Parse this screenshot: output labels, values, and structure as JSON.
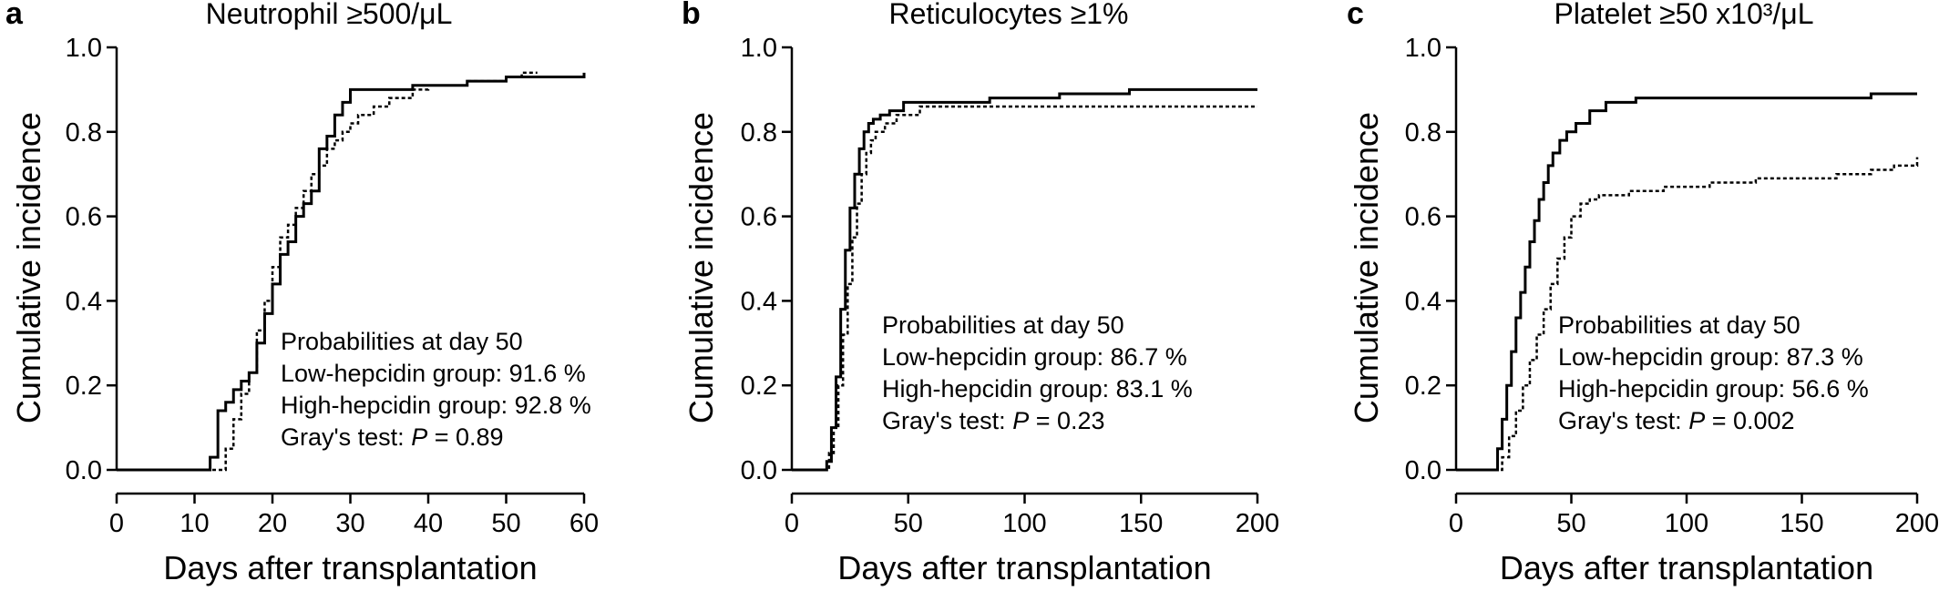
{
  "chart_data": [
    {
      "type": "line",
      "panel_letter": "a",
      "title": "Neutrophil ≥500/μL",
      "xlabel": "Days after transplantation",
      "ylabel": "Cumulative incidence",
      "xlim": [
        0,
        60
      ],
      "ylim": [
        0,
        1.0
      ],
      "xticks": [
        "0",
        "10",
        "20",
        "30",
        "40",
        "50",
        "60"
      ],
      "yticks": [
        "0.0",
        "0.2",
        "0.4",
        "0.6",
        "0.8",
        "1.0"
      ],
      "grid": false,
      "legend": "none",
      "annotation": {
        "heading": "Probabilities at day 50",
        "line1": "Low-hepcidin group: 91.6 %",
        "line2": "High-hepcidin group: 92.8 %",
        "test_prefix": "Gray's test: ",
        "test_stat": "P",
        "test_value": " = 0.89"
      },
      "series": [
        {
          "style": "solid",
          "x": [
            0,
            12,
            13,
            14,
            15,
            16,
            17,
            18,
            19,
            20,
            21,
            22,
            23,
            24,
            25,
            26,
            27,
            28,
            29,
            30,
            31,
            35,
            38,
            41,
            45,
            48,
            50,
            60
          ],
          "y": [
            0,
            0.03,
            0.14,
            0.16,
            0.19,
            0.21,
            0.23,
            0.3,
            0.37,
            0.44,
            0.51,
            0.54,
            0.6,
            0.63,
            0.66,
            0.76,
            0.79,
            0.84,
            0.87,
            0.9,
            0.9,
            0.9,
            0.91,
            0.91,
            0.92,
            0.92,
            0.93,
            0.94
          ]
        },
        {
          "style": "dashed",
          "x": [
            0,
            14,
            15,
            16,
            17,
            18,
            19,
            20,
            21,
            22,
            23,
            24,
            25,
            26,
            27,
            28,
            29,
            30,
            31,
            33,
            35,
            38,
            40,
            45,
            50,
            52,
            54
          ],
          "y": [
            0,
            0.05,
            0.12,
            0.18,
            0.23,
            0.33,
            0.4,
            0.48,
            0.55,
            0.58,
            0.62,
            0.66,
            0.7,
            0.72,
            0.76,
            0.78,
            0.8,
            0.82,
            0.84,
            0.86,
            0.88,
            0.9,
            0.91,
            0.92,
            0.93,
            0.94,
            0.94
          ]
        }
      ]
    },
    {
      "type": "line",
      "panel_letter": "b",
      "title": "Reticulocytes ≥1%",
      "xlabel": "Days after transplantation",
      "ylabel": "Cumulative incidence",
      "xlim": [
        0,
        200
      ],
      "ylim": [
        0,
        1.0
      ],
      "xticks": [
        "0",
        "50",
        "100",
        "150",
        "200"
      ],
      "yticks": [
        "0.0",
        "0.2",
        "0.4",
        "0.6",
        "0.8",
        "1.0"
      ],
      "grid": false,
      "legend": "none",
      "annotation": {
        "heading": "Probabilities at day 50",
        "line1": "Low-hepcidin group: 86.7 %",
        "line2": "High-hepcidin group: 83.1 %",
        "test_prefix": "Gray's test: ",
        "test_stat": "P",
        "test_value": " = 0.23"
      },
      "series": [
        {
          "style": "solid",
          "x": [
            0,
            15,
            17,
            19,
            21,
            23,
            25,
            27,
            29,
            31,
            33,
            35,
            38,
            42,
            48,
            60,
            85,
            115,
            145,
            200
          ],
          "y": [
            0,
            0.02,
            0.1,
            0.22,
            0.38,
            0.52,
            0.62,
            0.7,
            0.76,
            0.8,
            0.82,
            0.83,
            0.84,
            0.85,
            0.87,
            0.87,
            0.88,
            0.89,
            0.9,
            0.9
          ]
        },
        {
          "style": "dashed",
          "x": [
            0,
            16,
            18,
            20,
            22,
            24,
            26,
            28,
            30,
            32,
            34,
            36,
            40,
            45,
            55,
            200
          ],
          "y": [
            0,
            0.04,
            0.1,
            0.2,
            0.32,
            0.44,
            0.55,
            0.63,
            0.7,
            0.75,
            0.78,
            0.8,
            0.82,
            0.84,
            0.86,
            0.86
          ]
        }
      ]
    },
    {
      "type": "line",
      "panel_letter": "c",
      "title": "Platelet ≥50 x10³/μL",
      "xlabel": "Days after transplantation",
      "ylabel": "Cumulative incidence",
      "xlim": [
        0,
        200
      ],
      "ylim": [
        0,
        1.0
      ],
      "xticks": [
        "0",
        "50",
        "100",
        "150",
        "200"
      ],
      "yticks": [
        "0.0",
        "0.2",
        "0.4",
        "0.6",
        "0.8",
        "1.0"
      ],
      "grid": false,
      "legend": "none",
      "annotation": {
        "heading": "Probabilities at day 50",
        "line1": "Low-hepcidin group: 87.3 %",
        "line2": "High-hepcidin group: 56.6 %",
        "test_prefix": "Gray's test: ",
        "test_stat": "P",
        "test_value": " = 0.002"
      },
      "series": [
        {
          "style": "solid",
          "x": [
            0,
            18,
            20,
            22,
            24,
            26,
            28,
            30,
            32,
            34,
            36,
            38,
            40,
            42,
            45,
            48,
            52,
            58,
            65,
            78,
            180,
            200
          ],
          "y": [
            0,
            0.05,
            0.12,
            0.2,
            0.28,
            0.36,
            0.42,
            0.48,
            0.54,
            0.59,
            0.64,
            0.68,
            0.72,
            0.75,
            0.78,
            0.8,
            0.82,
            0.85,
            0.87,
            0.88,
            0.89,
            0.89
          ]
        },
        {
          "style": "dashed",
          "x": [
            0,
            20,
            23,
            26,
            29,
            32,
            35,
            38,
            41,
            44,
            47,
            50,
            54,
            58,
            62,
            75,
            90,
            110,
            130,
            150,
            165,
            180,
            190,
            200
          ],
          "y": [
            0,
            0.03,
            0.08,
            0.14,
            0.2,
            0.26,
            0.32,
            0.38,
            0.44,
            0.5,
            0.55,
            0.6,
            0.63,
            0.64,
            0.65,
            0.66,
            0.67,
            0.68,
            0.69,
            0.69,
            0.7,
            0.71,
            0.72,
            0.74
          ]
        }
      ]
    }
  ]
}
